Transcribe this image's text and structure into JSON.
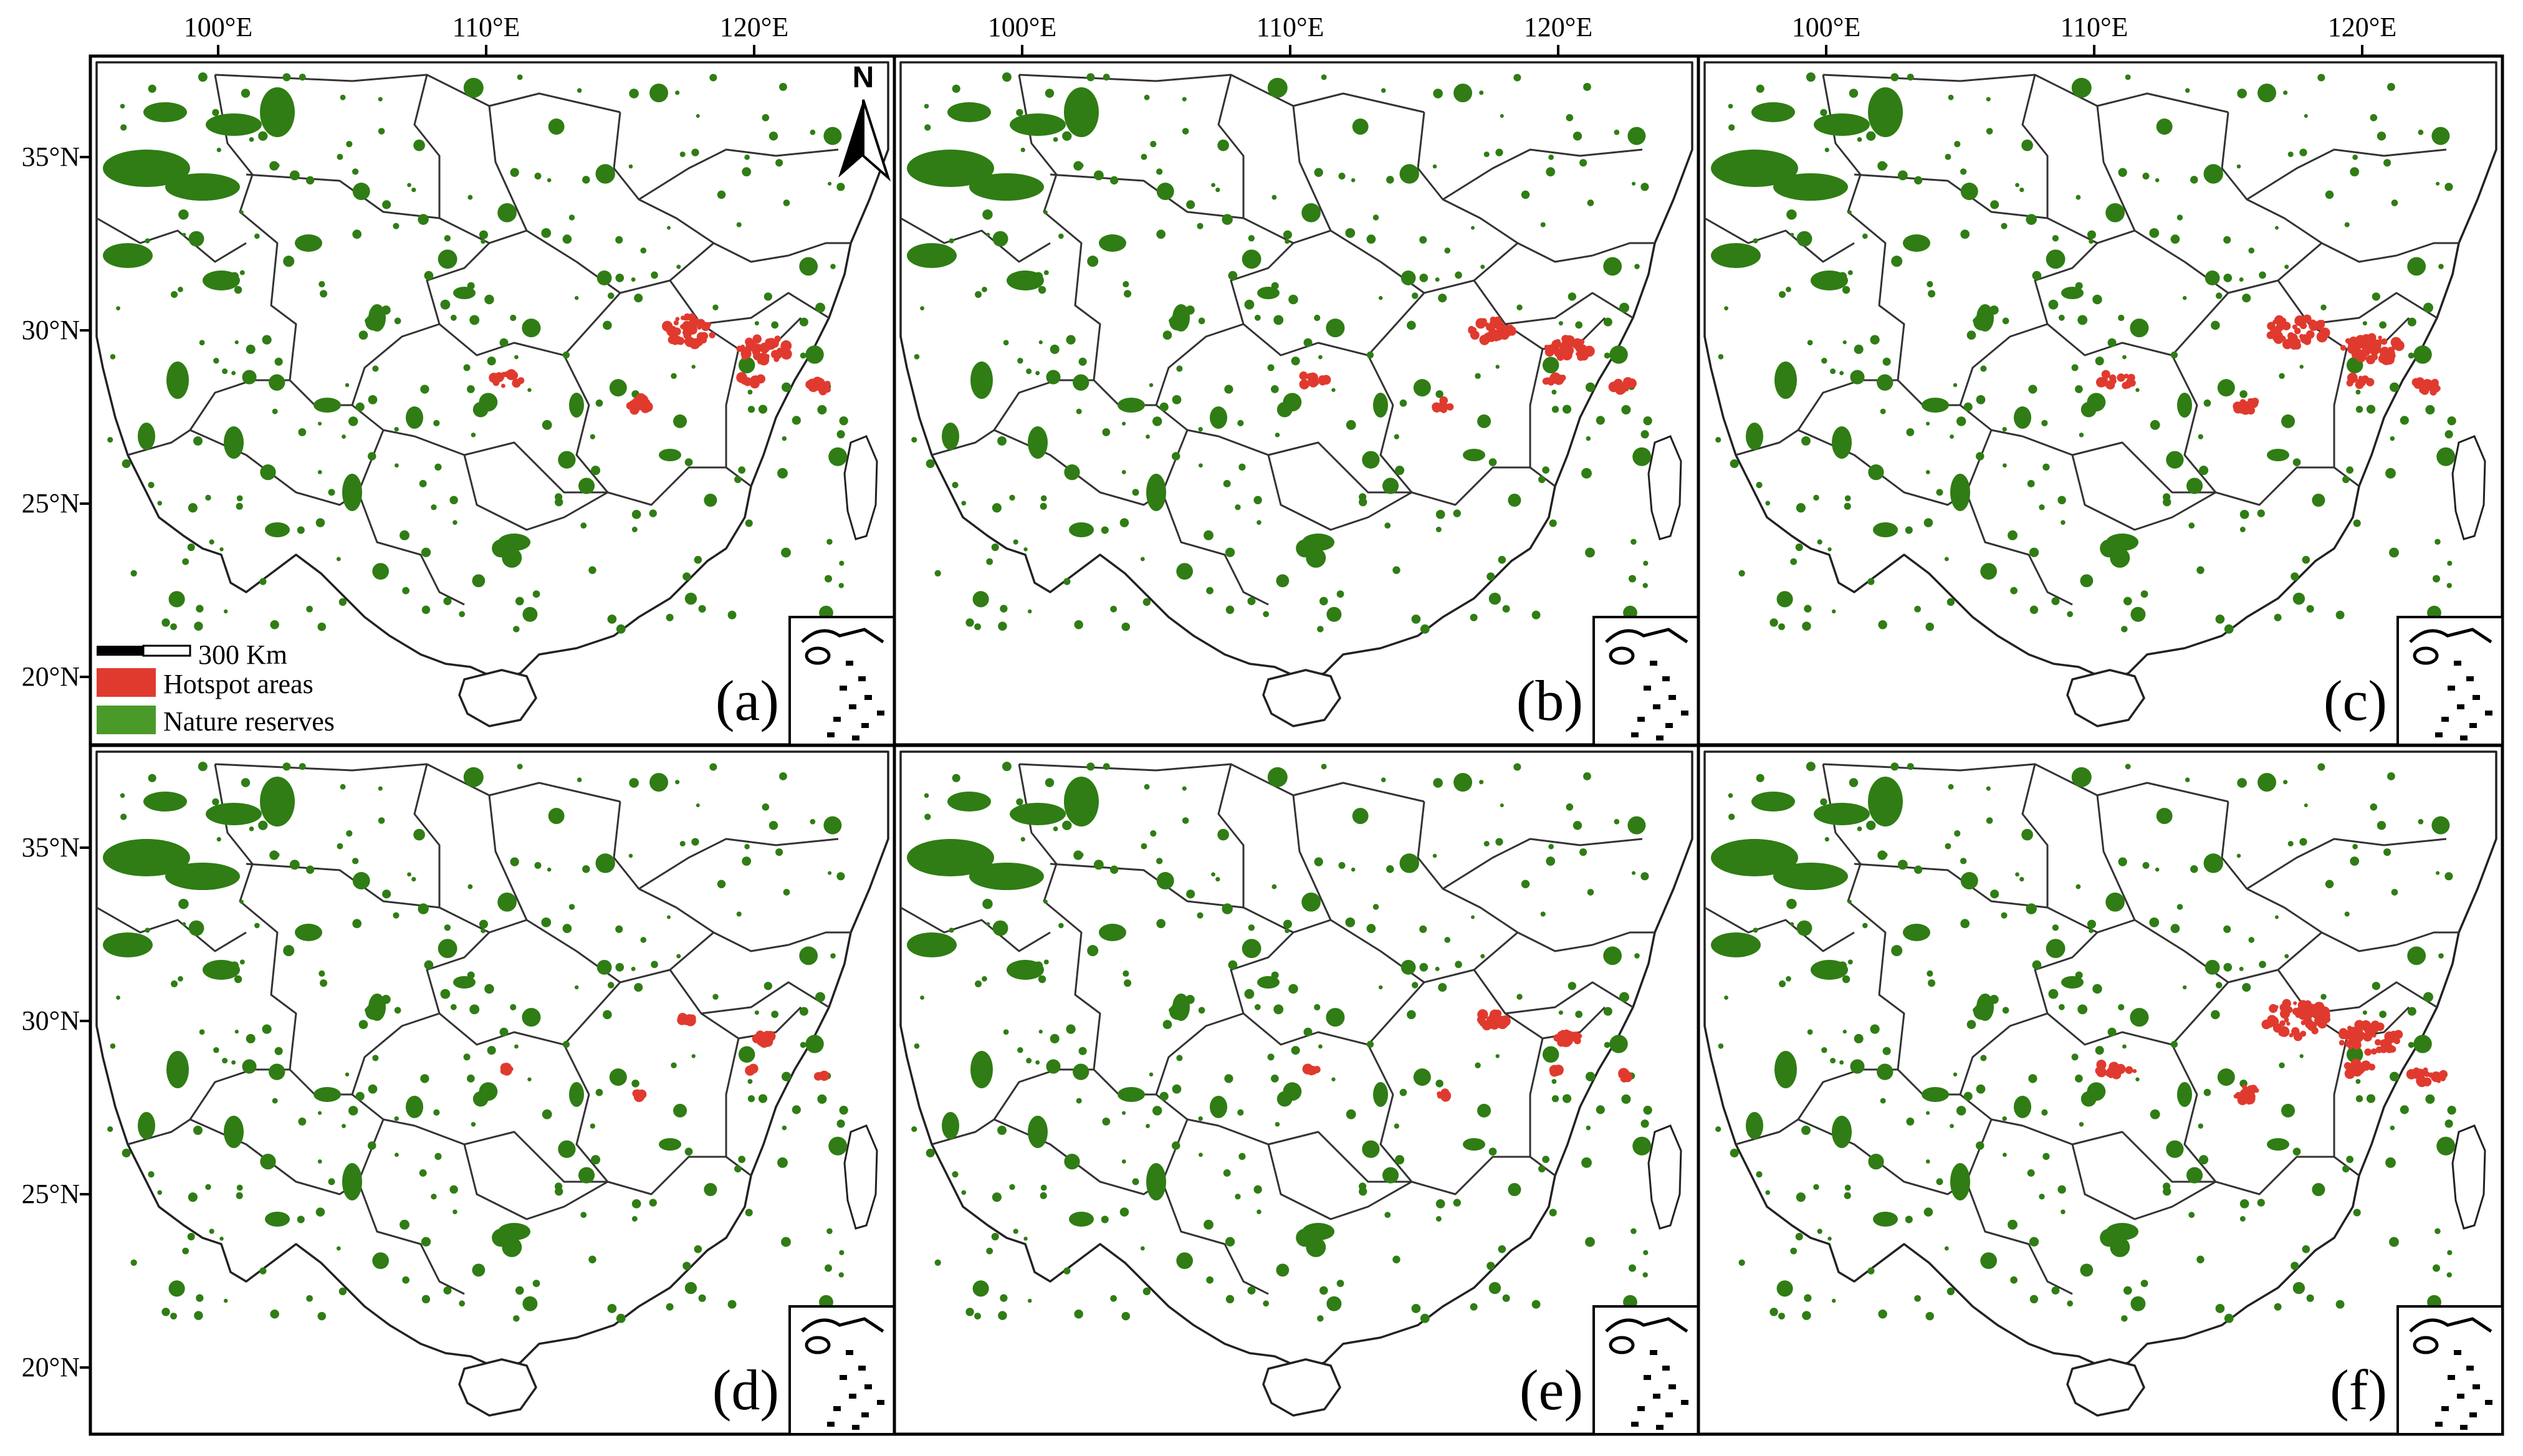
{
  "figure": {
    "lon_ticks": [
      "100°E",
      "110°E",
      "120°E"
    ],
    "lat_ticks": [
      "35°N",
      "30°N",
      "25°N",
      "20°N"
    ],
    "north_label": "N",
    "scale_label": "300 Km",
    "legend": [
      {
        "label": "Hotspot areas",
        "color": "#e03a2f"
      },
      {
        "label": "Nature reserves",
        "color": "#4a9a2a"
      }
    ],
    "colors": {
      "hotspot": "#e03a2f",
      "reserve": "#2f7d14",
      "reserve_legend": "#4a9a2a",
      "boundary": "#222222"
    },
    "panels": [
      {
        "id": "a",
        "label": "(a)",
        "hotspot_level": 0.75
      },
      {
        "id": "b",
        "label": "(b)",
        "hotspot_level": 0.65
      },
      {
        "id": "c",
        "label": "(c)",
        "hotspot_level": 0.85
      },
      {
        "id": "d",
        "label": "(d)",
        "hotspot_level": 0.25
      },
      {
        "id": "e",
        "label": "(e)",
        "hotspot_level": 0.4
      },
      {
        "id": "f",
        "label": "(f)",
        "hotspot_level": 0.95
      }
    ]
  }
}
